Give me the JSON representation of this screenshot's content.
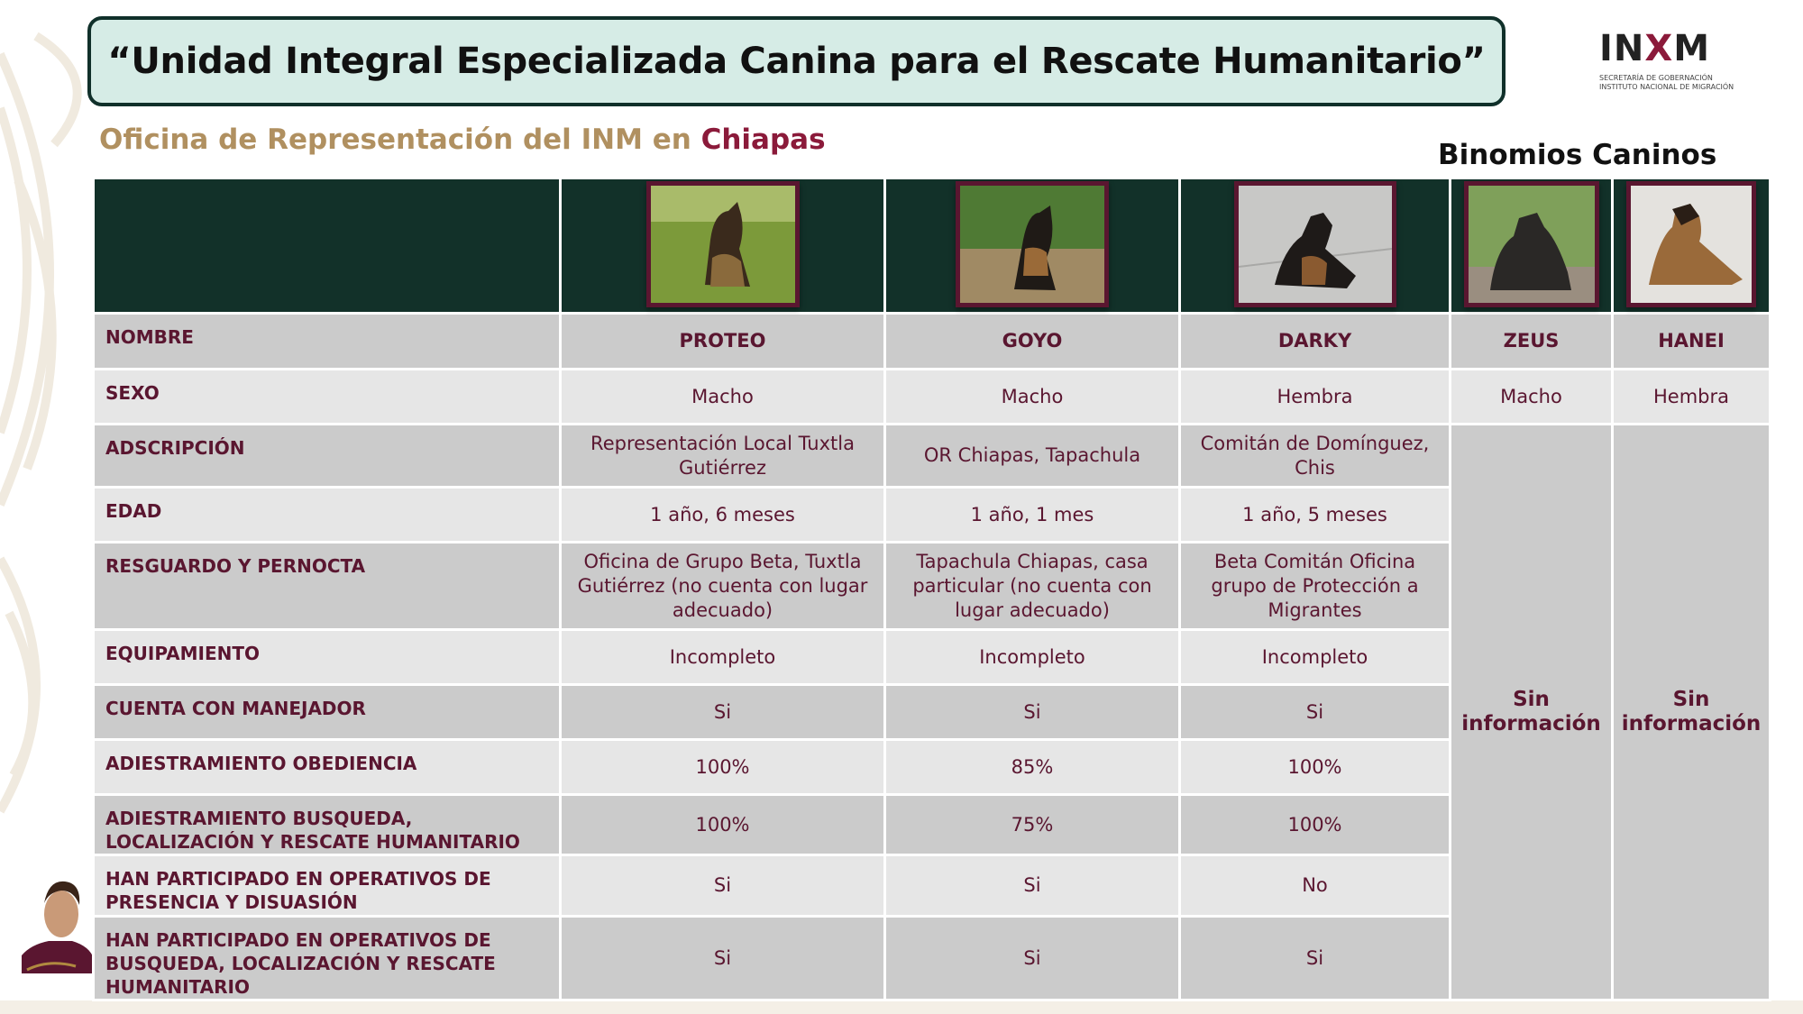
{
  "title": "“Unidad Integral Especializada Canina para el Rescate Humanitario”",
  "logo": {
    "mark_left": "IN",
    "mark_x": "X",
    "mark_right": "M",
    "line1": "SECRETARÍA DE GOBERNACIÓN",
    "line2": "INSTITUTO NACIONAL DE MIGRACIÓN"
  },
  "subtitle": {
    "prefix": "Oficina de Representación del INM en ",
    "place": "Chiapas"
  },
  "section_label": "Binomios Caninos",
  "dogs": [
    {
      "name": "PROTEO",
      "photo": "dog-photo-proteo"
    },
    {
      "name": "GOYO",
      "photo": "dog-photo-goyo"
    },
    {
      "name": "DARKY",
      "photo": "dog-photo-darky"
    },
    {
      "name": "ZEUS",
      "photo": "dog-photo-zeus"
    },
    {
      "name": "HANEI",
      "photo": "dog-photo-hanei"
    }
  ],
  "rows": {
    "nombre": "NOMBRE",
    "sexo": {
      "label": "SEXO",
      "values": [
        "Macho",
        "Macho",
        "Hembra",
        "Macho",
        "Hembra"
      ]
    },
    "adscripcion": {
      "label": "ADSCRIPCIÓN",
      "values": [
        "Representación Local Tuxtla Gutiérrez",
        "OR Chiapas, Tapachula",
        "Comitán de Domínguez, Chis"
      ]
    },
    "edad": {
      "label": "EDAD",
      "values": [
        "1 año, 6 meses",
        "1 año, 1 mes",
        "1 año, 5 meses"
      ]
    },
    "resguardo": {
      "label": "RESGUARDO Y PERNOCTA",
      "values": [
        "Oficina de Grupo Beta, Tuxtla Gutiérrez (no cuenta con lugar adecuado)",
        "Tapachula Chiapas, casa particular (no cuenta con lugar adecuado)",
        "Beta Comitán Oficina grupo de Protección a Migrantes"
      ]
    },
    "equipamiento": {
      "label": "EQUIPAMIENTO",
      "values": [
        "Incompleto",
        "Incompleto",
        "Incompleto"
      ]
    },
    "manejador": {
      "label": "CUENTA CON MANEJADOR",
      "values": [
        "Si",
        "Si",
        "Si"
      ]
    },
    "obediencia": {
      "label": "ADIESTRAMIENTO OBEDIENCIA",
      "values": [
        "100%",
        "85%",
        "100%"
      ]
    },
    "busqueda": {
      "label": "ADIESTRAMIENTO BUSQUEDA, LOCALIZACIÓN Y RESCATE HUMANITARIO",
      "values": [
        "100%",
        "75%",
        "100%"
      ]
    },
    "presencia": {
      "label": "HAN PARTICIPADO EN OPERATIVOS DE PRESENCIA Y DISUASIÓN",
      "values": [
        "Si",
        "Si",
        "No"
      ]
    },
    "operativos_busqueda": {
      "label": "HAN PARTICIPADO EN OPERATIVOS DE BUSQUEDA, LOCALIZACIÓN Y RESCATE HUMANITARIO",
      "values": [
        "Si",
        "Si",
        "Si"
      ]
    }
  },
  "no_info": "Sin información",
  "colors": {
    "header_dark": "#123129",
    "title_bg": "#d6ece6",
    "text_wine": "#5a1630",
    "subtitle_gold": "#b09060",
    "accent": "#8b1a3a"
  }
}
